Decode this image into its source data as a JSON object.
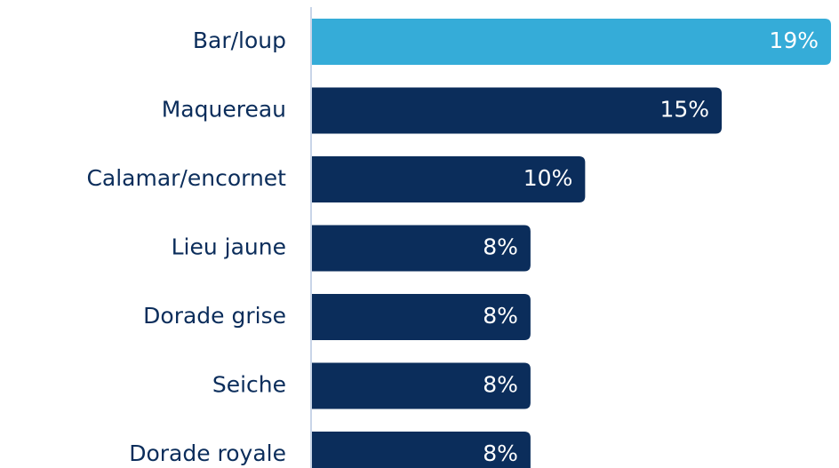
{
  "chart_data": {
    "type": "barh",
    "categories": [
      "Bar/loup",
      "Maquereau",
      "Calamar/encornet",
      "Lieu jaune",
      "Dorade grise",
      "Seiche",
      "Dorade royale"
    ],
    "values": [
      19,
      15,
      10,
      8,
      8,
      8,
      8
    ],
    "value_labels": [
      "19%",
      "15%",
      "10%",
      "8%",
      "8%",
      "8%",
      "8%"
    ],
    "colors": [
      "#35acd8",
      "#0b2d5b",
      "#0b2d5b",
      "#0b2d5b",
      "#0b2d5b",
      "#0b2d5b",
      "#0b2d5b"
    ]
  }
}
